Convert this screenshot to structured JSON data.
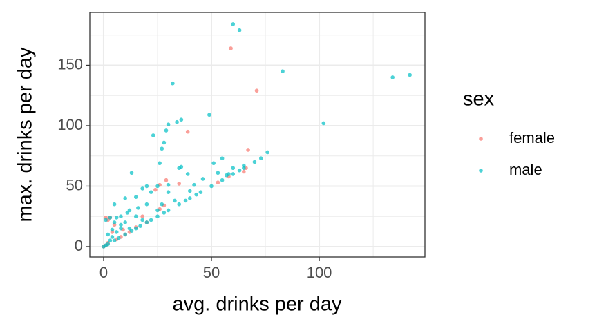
{
  "chart_data": {
    "type": "scatter",
    "x_label": "avg. drinks per day",
    "y_label": "max. drinks per day",
    "legend_title": "sex",
    "legend_position": "right",
    "grid": true,
    "xlim": [
      -6.4,
      149
    ],
    "ylim": [
      -8.6,
      193.7
    ],
    "xticks": [
      0,
      50,
      100
    ],
    "yticks": [
      0,
      50,
      100,
      150
    ],
    "xminor": [
      25,
      75,
      125
    ],
    "yminor": [
      25,
      75,
      125,
      175
    ],
    "series": [
      {
        "name": "female",
        "color": "#F8766D",
        "x": [
          59,
          71,
          39,
          67,
          29,
          26,
          24,
          35,
          58,
          53,
          66,
          65,
          28,
          26,
          1,
          3,
          2,
          5,
          10,
          6,
          0,
          2,
          1,
          8,
          12,
          15,
          20,
          4,
          9,
          18
        ],
        "y": [
          164,
          129,
          95,
          80,
          55,
          51,
          47,
          52,
          58,
          53,
          65,
          62,
          34,
          31,
          24,
          24,
          22,
          18,
          10,
          6,
          0,
          3,
          1,
          8,
          12,
          16,
          20,
          12,
          14,
          25
        ]
      },
      {
        "name": "male",
        "color": "#00BFC4",
        "x": [
          60,
          63,
          83,
          134,
          142,
          32,
          102,
          49,
          36,
          34,
          30,
          29,
          23,
          28,
          27,
          76,
          73,
          55,
          51,
          60,
          36,
          35,
          26,
          13,
          39,
          53,
          65,
          63,
          57,
          46,
          42,
          30,
          25,
          20,
          18,
          22,
          30,
          40,
          15,
          10,
          5,
          12,
          20,
          25,
          35,
          45,
          50,
          30,
          40,
          20,
          10,
          5,
          2,
          0,
          1,
          3,
          8,
          5,
          1,
          3,
          8,
          15,
          10,
          12,
          18,
          25,
          2,
          4,
          6,
          15,
          7,
          60,
          55,
          65,
          70,
          58,
          38,
          43,
          28,
          22,
          17,
          13,
          27,
          33,
          8,
          11,
          16,
          6,
          4
        ],
        "y": [
          184,
          179,
          145,
          140,
          142,
          135,
          102,
          109,
          105,
          103,
          101,
          96,
          92,
          86,
          81,
          78,
          73,
          73,
          69,
          65,
          66,
          65,
          69,
          61,
          60,
          61,
          67,
          63,
          59,
          56,
          51,
          51,
          50,
          50,
          48,
          45,
          45,
          46,
          41,
          40,
          35,
          30,
          35,
          30,
          35,
          45,
          50,
          30,
          40,
          20,
          10,
          5,
          2,
          0,
          1,
          5,
          15,
          20,
          22,
          24,
          25,
          25,
          20,
          15,
          22,
          25,
          10,
          8,
          12,
          15,
          7,
          60,
          55,
          65,
          70,
          60,
          38,
          43,
          28,
          22,
          17,
          13,
          35,
          38,
          18,
          28,
          32,
          24,
          14
        ]
      }
    ]
  }
}
